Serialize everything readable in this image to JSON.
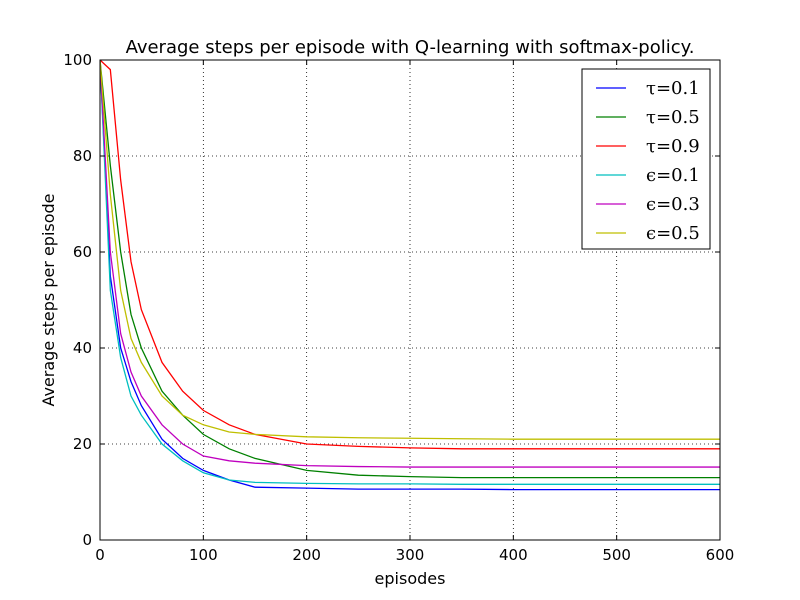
{
  "chart_data": {
    "type": "line",
    "title": "Average steps per episode with Q-learning with softmax-policy.",
    "xlabel": "episodes",
    "ylabel": "Average steps per episode",
    "xlim": [
      0,
      600
    ],
    "ylim": [
      0,
      100
    ],
    "xticks": [
      "0",
      "100",
      "200",
      "300",
      "400",
      "500",
      "600"
    ],
    "yticks": [
      "0",
      "20",
      "40",
      "60",
      "80",
      "100"
    ],
    "grid": true,
    "legend_position": "top-right",
    "series": [
      {
        "name": "τ=0.1",
        "color": "#0000ff",
        "x": [
          0,
          10,
          20,
          30,
          40,
          60,
          80,
          100,
          125,
          150,
          200,
          250,
          300,
          350,
          400,
          450,
          500,
          550,
          600
        ],
        "y": [
          100,
          55,
          40,
          33,
          28,
          21,
          17,
          14.5,
          12.5,
          11,
          10.8,
          10.6,
          10.6,
          10.6,
          10.5,
          10.5,
          10.5,
          10.5,
          10.5
        ]
      },
      {
        "name": "τ=0.5",
        "color": "#008000",
        "x": [
          0,
          10,
          20,
          30,
          40,
          60,
          80,
          100,
          125,
          150,
          200,
          250,
          300,
          350,
          400,
          450,
          500,
          550,
          600
        ],
        "y": [
          100,
          78,
          60,
          47,
          40,
          31,
          26,
          22,
          19,
          17,
          14.5,
          13.5,
          13.2,
          13,
          13,
          13,
          13,
          13,
          13
        ]
      },
      {
        "name": "τ=0.9",
        "color": "#ff0000",
        "x": [
          0,
          10,
          20,
          30,
          40,
          60,
          80,
          100,
          125,
          150,
          200,
          250,
          300,
          350,
          400,
          450,
          500,
          550,
          600
        ],
        "y": [
          100,
          98,
          75,
          58,
          48,
          37,
          31,
          27,
          24,
          22,
          20,
          19.5,
          19.2,
          19,
          19,
          19,
          19,
          19,
          19
        ]
      },
      {
        "name": "ϵ=0.1",
        "color": "#00bfbf",
        "x": [
          0,
          10,
          20,
          30,
          40,
          60,
          80,
          100,
          125,
          150,
          200,
          250,
          300,
          350,
          400,
          450,
          500,
          550,
          600
        ],
        "y": [
          100,
          52,
          38,
          30,
          26,
          20,
          16.5,
          14,
          12.5,
          12,
          11.8,
          11.7,
          11.7,
          11.6,
          11.6,
          11.6,
          11.6,
          11.6,
          11.6
        ]
      },
      {
        "name": "ϵ=0.3",
        "color": "#bf00bf",
        "x": [
          0,
          10,
          20,
          30,
          40,
          60,
          80,
          100,
          125,
          150,
          200,
          250,
          300,
          350,
          400,
          450,
          500,
          550,
          600
        ],
        "y": [
          100,
          60,
          43,
          35,
          30,
          24,
          20,
          17.5,
          16.5,
          16,
          15.5,
          15.3,
          15.2,
          15.2,
          15.2,
          15.2,
          15.2,
          15.2,
          15.2
        ]
      },
      {
        "name": "ϵ=0.5",
        "color": "#bfbf00",
        "x": [
          0,
          10,
          20,
          30,
          40,
          60,
          80,
          100,
          125,
          150,
          200,
          250,
          300,
          350,
          400,
          450,
          500,
          550,
          600
        ],
        "y": [
          100,
          72,
          52,
          42,
          37,
          30,
          26,
          24,
          22.5,
          22,
          21.5,
          21.3,
          21.2,
          21.1,
          21,
          21,
          21,
          21,
          21
        ]
      }
    ]
  }
}
